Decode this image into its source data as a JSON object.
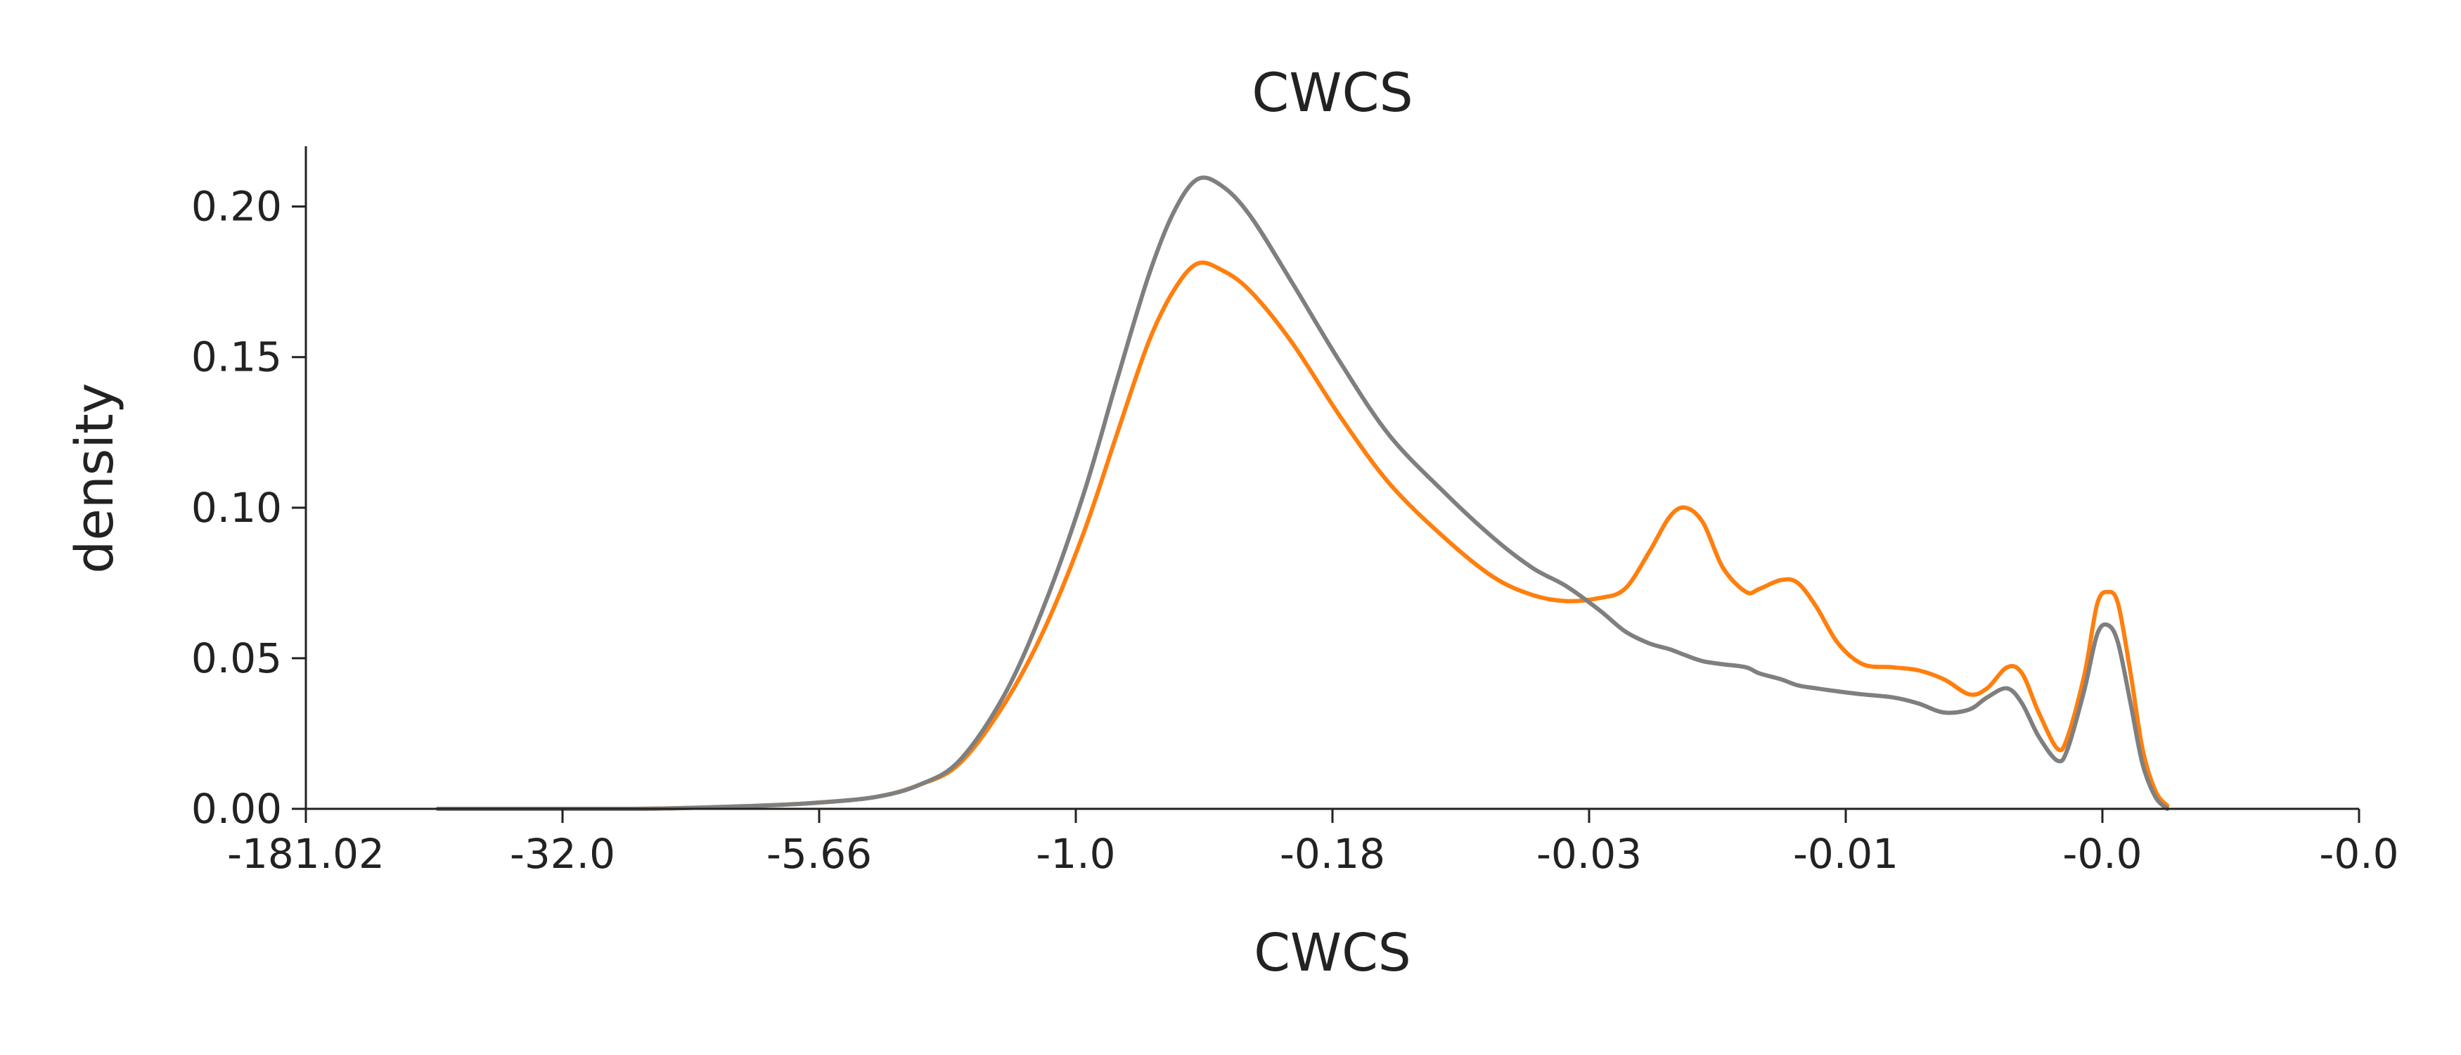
{
  "chart_data": {
    "type": "line",
    "title": "CWCS",
    "xlabel": "CWCS",
    "ylabel": "density",
    "x_scale": "log",
    "x_ticks": [
      "-181.02",
      "-32.0",
      "-5.66",
      "-1.0",
      "-0.18",
      "-0.03",
      "-0.01",
      "-0.0",
      "-0.0"
    ],
    "y_ticks": [
      "0.00",
      "0.05",
      "0.10",
      "0.15",
      "0.20"
    ],
    "ylim": [
      0,
      0.22
    ],
    "grid": false,
    "legend": "none",
    "series": [
      {
        "color": "#ff7f0e",
        "points": [
          [
            -75,
            0.0
          ],
          [
            -20,
            0.0
          ],
          [
            -9,
            0.001
          ],
          [
            -6,
            0.002
          ],
          [
            -4,
            0.004
          ],
          [
            -3,
            0.008
          ],
          [
            -2.3,
            0.015
          ],
          [
            -1.7,
            0.035
          ],
          [
            -1.3,
            0.06
          ],
          [
            -1.0,
            0.092
          ],
          [
            -0.8,
            0.125
          ],
          [
            -0.65,
            0.155
          ],
          [
            -0.55,
            0.172
          ],
          [
            -0.47,
            0.181
          ],
          [
            -0.4,
            0.179
          ],
          [
            -0.33,
            0.172
          ],
          [
            -0.25,
            0.155
          ],
          [
            -0.18,
            0.13
          ],
          [
            -0.13,
            0.108
          ],
          [
            -0.09,
            0.09
          ],
          [
            -0.065,
            0.077
          ],
          [
            -0.05,
            0.071
          ],
          [
            -0.04,
            0.069
          ],
          [
            -0.032,
            0.07
          ],
          [
            -0.027,
            0.073
          ],
          [
            -0.023,
            0.085
          ],
          [
            -0.02,
            0.097
          ],
          [
            -0.018,
            0.1
          ],
          [
            -0.016,
            0.095
          ],
          [
            -0.014,
            0.08
          ],
          [
            -0.012,
            0.072
          ],
          [
            -0.011,
            0.073
          ],
          [
            -0.0095,
            0.076
          ],
          [
            -0.0085,
            0.075
          ],
          [
            -0.0075,
            0.067
          ],
          [
            -0.0065,
            0.055
          ],
          [
            -0.0055,
            0.048
          ],
          [
            -0.0045,
            0.047
          ],
          [
            -0.0038,
            0.046
          ],
          [
            -0.0032,
            0.043
          ],
          [
            -0.0027,
            0.038
          ],
          [
            -0.0024,
            0.04
          ],
          [
            -0.0021,
            0.047
          ],
          [
            -0.0019,
            0.045
          ],
          [
            -0.0017,
            0.032
          ],
          [
            -0.0015,
            0.02
          ],
          [
            -0.0014,
            0.024
          ],
          [
            -0.00125,
            0.045
          ],
          [
            -0.00115,
            0.068
          ],
          [
            -0.00107,
            0.072
          ],
          [
            -0.001,
            0.068
          ],
          [
            -0.00092,
            0.045
          ],
          [
            -0.00085,
            0.02
          ],
          [
            -0.00078,
            0.006
          ],
          [
            -0.00072,
            0.001
          ]
        ]
      },
      {
        "color": "#7f7f7f",
        "points": [
          [
            -75,
            0.0
          ],
          [
            -20,
            0.0
          ],
          [
            -9,
            0.001
          ],
          [
            -6,
            0.002
          ],
          [
            -4,
            0.004
          ],
          [
            -3,
            0.008
          ],
          [
            -2.3,
            0.016
          ],
          [
            -1.7,
            0.038
          ],
          [
            -1.3,
            0.068
          ],
          [
            -1.0,
            0.105
          ],
          [
            -0.8,
            0.143
          ],
          [
            -0.65,
            0.177
          ],
          [
            -0.55,
            0.198
          ],
          [
            -0.47,
            0.209
          ],
          [
            -0.4,
            0.207
          ],
          [
            -0.33,
            0.197
          ],
          [
            -0.25,
            0.175
          ],
          [
            -0.18,
            0.148
          ],
          [
            -0.13,
            0.124
          ],
          [
            -0.09,
            0.105
          ],
          [
            -0.065,
            0.09
          ],
          [
            -0.05,
            0.08
          ],
          [
            -0.04,
            0.074
          ],
          [
            -0.032,
            0.066
          ],
          [
            -0.027,
            0.059
          ],
          [
            -0.023,
            0.055
          ],
          [
            -0.02,
            0.053
          ],
          [
            -0.018,
            0.051
          ],
          [
            -0.016,
            0.049
          ],
          [
            -0.014,
            0.048
          ],
          [
            -0.012,
            0.047
          ],
          [
            -0.011,
            0.045
          ],
          [
            -0.0095,
            0.043
          ],
          [
            -0.0085,
            0.041
          ],
          [
            -0.0075,
            0.04
          ],
          [
            -0.0065,
            0.039
          ],
          [
            -0.0055,
            0.038
          ],
          [
            -0.0045,
            0.037
          ],
          [
            -0.0038,
            0.035
          ],
          [
            -0.0032,
            0.032
          ],
          [
            -0.0027,
            0.033
          ],
          [
            -0.0024,
            0.037
          ],
          [
            -0.0021,
            0.04
          ],
          [
            -0.0019,
            0.035
          ],
          [
            -0.0017,
            0.024
          ],
          [
            -0.0015,
            0.016
          ],
          [
            -0.0014,
            0.02
          ],
          [
            -0.00125,
            0.04
          ],
          [
            -0.00115,
            0.058
          ],
          [
            -0.00107,
            0.061
          ],
          [
            -0.001,
            0.055
          ],
          [
            -0.00092,
            0.035
          ],
          [
            -0.00085,
            0.015
          ],
          [
            -0.00078,
            0.004
          ],
          [
            -0.00072,
            0.0
          ]
        ]
      }
    ]
  }
}
